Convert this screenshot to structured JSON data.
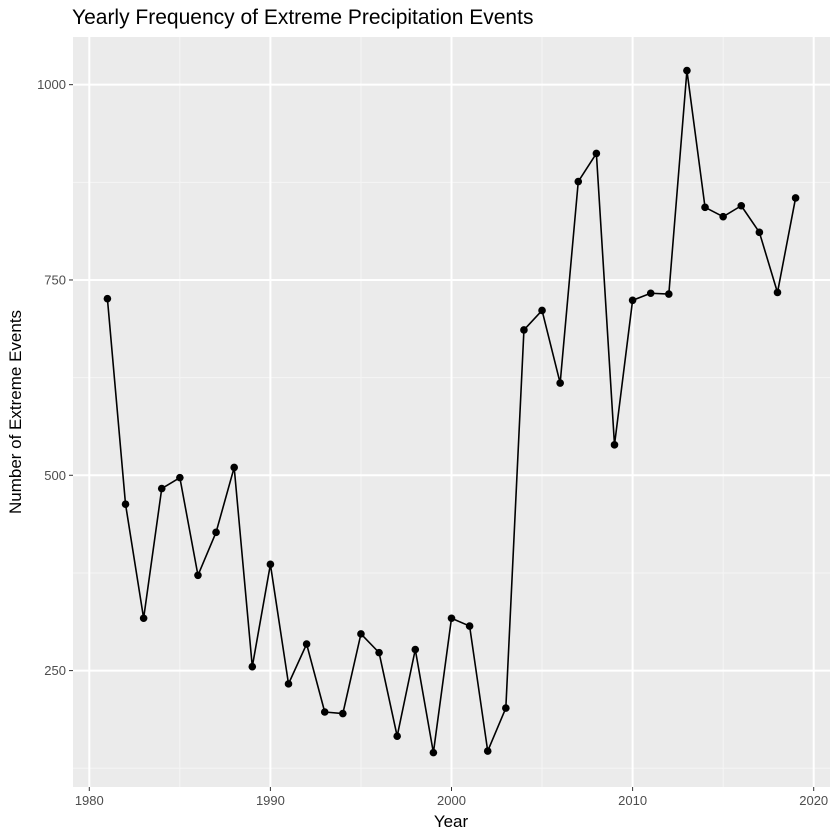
{
  "chart_data": {
    "type": "line",
    "title": "Yearly Frequency of Extreme Precipitation Events",
    "xlabel": "Year",
    "ylabel": "Number of Extreme Events",
    "x": [
      1981,
      1982,
      1983,
      1984,
      1985,
      1986,
      1987,
      1988,
      1989,
      1990,
      1991,
      1992,
      1993,
      1994,
      1995,
      1996,
      1997,
      1998,
      1999,
      2000,
      2001,
      2002,
      2003,
      2004,
      2005,
      2006,
      2007,
      2008,
      2009,
      2010,
      2011,
      2012,
      2013,
      2014,
      2015,
      2016,
      2017,
      2018,
      2019
    ],
    "series": [
      {
        "values": [
          726,
          463,
          317,
          483,
          497,
          372,
          427,
          510,
          255,
          386,
          233,
          284,
          197,
          195,
          297,
          273,
          166,
          277,
          145,
          317,
          307,
          147,
          202,
          686,
          711,
          618,
          876,
          912,
          539,
          724,
          733,
          732,
          1018,
          843,
          831,
          845,
          811,
          734,
          855
        ]
      }
    ],
    "x_ticks": [
      1980,
      1990,
      2000,
      2010,
      2020
    ],
    "y_ticks": [
      250,
      500,
      750,
      1000
    ],
    "xlim": [
      1979.1,
      2020.9
    ],
    "ylim": [
      101,
      1061
    ],
    "grid": true,
    "legend": "none",
    "colors": {
      "panel_background": "#EBEBEB",
      "grid_major": "#FFFFFF",
      "grid_minor": "#F5F5F5",
      "line": "#000000",
      "points": "#000000",
      "tick_label": "#4D4D4D",
      "tick_mark": "#333333"
    }
  }
}
